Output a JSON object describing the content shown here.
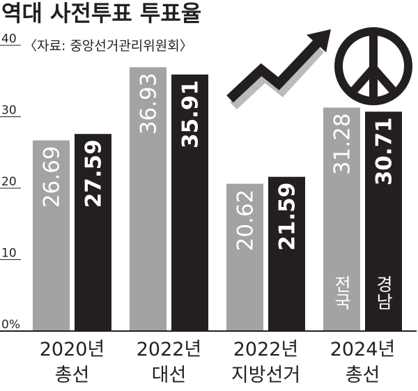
{
  "chart_data": {
    "type": "bar",
    "title": "역대 사전투표 투표율",
    "subtitle": "〈자료: 중앙선거관리위원회〉",
    "categories": [
      "2020년 총선",
      "2022년 대선",
      "2022년 지방선거",
      "2024년 총선"
    ],
    "series": [
      {
        "name": "전국",
        "color": "#a3a3a3",
        "values": [
          26.69,
          36.93,
          20.62,
          31.28
        ]
      },
      {
        "name": "경남",
        "color": "#231f20",
        "values": [
          27.59,
          35.91,
          21.59,
          30.71
        ]
      }
    ],
    "ylim": [
      0,
      40
    ],
    "yticks": [
      {
        "value": 0,
        "label": "0%"
      },
      10,
      20,
      30,
      40
    ]
  }
}
